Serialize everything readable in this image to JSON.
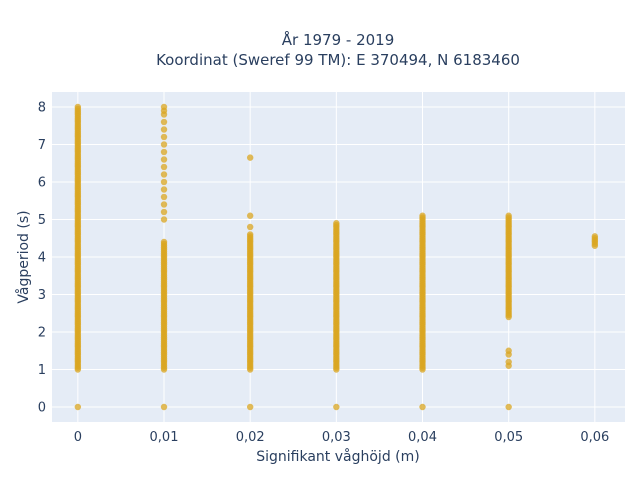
{
  "chart_data": {
    "type": "scatter",
    "title_line1": "År 1979 - 2019",
    "title_line2": "Koordinat (Sweref 99 TM): E 370494, N 6183460",
    "xlabel": "Signifikant våghöjd (m)",
    "ylabel": "Vågperiod (s)",
    "x_ticks": [
      "0",
      "0,01",
      "0,02",
      "0,03",
      "0,04",
      "0,05",
      "0,06"
    ],
    "y_ticks": [
      "0",
      "1",
      "2",
      "3",
      "4",
      "5",
      "6",
      "7",
      "8"
    ],
    "xlim": [
      -0.003,
      0.0635
    ],
    "ylim": [
      -0.4,
      8.4
    ],
    "grid": true,
    "marker_color": "#DAA520",
    "plot_bg": "#E5ECF6",
    "columns": [
      {
        "x": 0.0,
        "y_min": 1.0,
        "y_max": 8.0,
        "extra_y": [
          0
        ]
      },
      {
        "x": 0.01,
        "y_min": 1.0,
        "y_max": 4.4,
        "extra_y": [
          0,
          5.0,
          5.2,
          5.4,
          5.6,
          5.8,
          6.0,
          6.2,
          6.4,
          6.6,
          6.8,
          7.0,
          7.2,
          7.4,
          7.6,
          7.8,
          7.9,
          8.0
        ]
      },
      {
        "x": 0.02,
        "y_min": 1.0,
        "y_max": 4.6,
        "extra_y": [
          0,
          4.8,
          5.1,
          6.65
        ]
      },
      {
        "x": 0.03,
        "y_min": 1.0,
        "y_max": 4.9,
        "extra_y": [
          0
        ]
      },
      {
        "x": 0.04,
        "y_min": 1.0,
        "y_max": 5.1,
        "extra_y": [
          0
        ]
      },
      {
        "x": 0.05,
        "y_min": 2.4,
        "y_max": 5.1,
        "extra_y": [
          0,
          1.1,
          1.2,
          1.4,
          1.5
        ]
      },
      {
        "x": 0.06,
        "y_min": 4.3,
        "y_max": 4.55,
        "extra_y": []
      }
    ]
  }
}
